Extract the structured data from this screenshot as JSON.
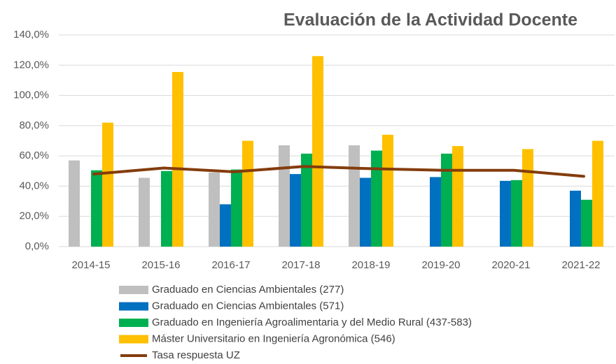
{
  "chart_data": {
    "type": "bar",
    "title": "Evaluación de la Actividad Docente",
    "categories": [
      "2014-15",
      "2015-16",
      "2016-17",
      "2017-18",
      "2018-19",
      "2019-20",
      "2020-21",
      "2021-22"
    ],
    "series": [
      {
        "name": "Graduado en Ciencias Ambientales (277)",
        "color": "#bfbfbf",
        "values": [
          57,
          45.5,
          49,
          67,
          67,
          null,
          null,
          null
        ]
      },
      {
        "name": "Graduado en Ciencias Ambientales (571)",
        "color": "#0070c0",
        "values": [
          null,
          null,
          28,
          48,
          45.5,
          46,
          43.5,
          37
        ]
      },
      {
        "name": "Graduado en Ingeniería Agroalimentaria y del Medio Rural (437-583)",
        "color": "#00b050",
        "values": [
          50.5,
          50,
          51,
          61.5,
          63.5,
          61.5,
          44,
          31
        ]
      },
      {
        "name": "Máster Universitario en Ingeniería Agronómica (546)",
        "color": "#ffc000",
        "values": [
          82,
          115.5,
          70,
          126,
          74,
          66.5,
          64.5,
          70
        ]
      },
      {
        "name": "Tasa respuesta UZ",
        "color": "#843c0c",
        "type": "line",
        "values": [
          48,
          52,
          49.5,
          53,
          51.5,
          50.5,
          50.5,
          46.5
        ]
      }
    ],
    "ylim": [
      0,
      140
    ],
    "yticks": [
      {
        "value": 0,
        "label": "0,0%"
      },
      {
        "value": 20,
        "label": "20,0%"
      },
      {
        "value": 40,
        "label": "40,0%"
      },
      {
        "value": 60,
        "label": "60,0%"
      },
      {
        "value": 80,
        "label": "80,0%"
      },
      {
        "value": 100,
        "label": "100,0%"
      },
      {
        "value": 120,
        "label": "120,0%"
      },
      {
        "value": 140,
        "label": "140,0%"
      }
    ],
    "grid": true
  }
}
